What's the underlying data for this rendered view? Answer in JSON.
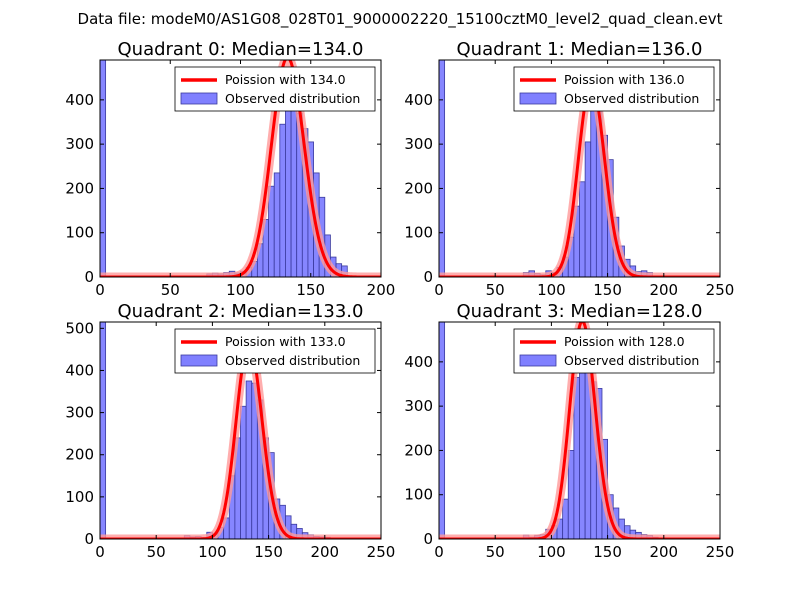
{
  "figure": {
    "suptitle": "Data file: modeM0/AS1G08_028T01_9000002220_15100cztM0_level2_quad_clean.evt"
  },
  "colors": {
    "bar_fill": "#8080ff",
    "bar_edge": "#3a3a9e",
    "line": "#ff0000",
    "line_glow": "#ff9a9a"
  },
  "chart_data": [
    {
      "type": "bar",
      "title": "Quadrant 0: Median=134.0",
      "xlim": [
        0,
        200
      ],
      "ylim": [
        0,
        490
      ],
      "xticks": [
        0,
        50,
        100,
        150,
        200
      ],
      "yticks": [
        0,
        100,
        200,
        300,
        400
      ],
      "bin_width": 4,
      "bins": [
        [
          0,
          490
        ],
        [
          76,
          7
        ],
        [
          80,
          9
        ],
        [
          84,
          7
        ],
        [
          88,
          10
        ],
        [
          92,
          13
        ],
        [
          96,
          9
        ],
        [
          100,
          13
        ],
        [
          104,
          22
        ],
        [
          108,
          35
        ],
        [
          112,
          75
        ],
        [
          116,
          130
        ],
        [
          120,
          205
        ],
        [
          124,
          235
        ],
        [
          128,
          345
        ],
        [
          132,
          440
        ],
        [
          136,
          420
        ],
        [
          140,
          370
        ],
        [
          144,
          335
        ],
        [
          148,
          305
        ],
        [
          152,
          235
        ],
        [
          156,
          180
        ],
        [
          160,
          95
        ],
        [
          164,
          45
        ],
        [
          168,
          30
        ],
        [
          172,
          25
        ]
      ],
      "poisson_mean": 134.0,
      "legend": [
        "Poission with 134.0",
        "Observed distribution"
      ]
    },
    {
      "type": "bar",
      "title": "Quadrant 1: Median=136.0",
      "xlim": [
        0,
        250
      ],
      "ylim": [
        0,
        490
      ],
      "xticks": [
        0,
        50,
        100,
        150,
        200,
        250
      ],
      "yticks": [
        0,
        100,
        200,
        300,
        400
      ],
      "bin_width": 5,
      "bins": [
        [
          0,
          490
        ],
        [
          75,
          10
        ],
        [
          80,
          14
        ],
        [
          85,
          8
        ],
        [
          90,
          5
        ],
        [
          95,
          14
        ],
        [
          100,
          10
        ],
        [
          105,
          22
        ],
        [
          110,
          45
        ],
        [
          115,
          90
        ],
        [
          120,
          160
        ],
        [
          125,
          215
        ],
        [
          130,
          305
        ],
        [
          135,
          400
        ],
        [
          140,
          375
        ],
        [
          145,
          320
        ],
        [
          150,
          265
        ],
        [
          155,
          135
        ],
        [
          160,
          70
        ],
        [
          165,
          40
        ],
        [
          170,
          25
        ],
        [
          175,
          12
        ],
        [
          180,
          14
        ],
        [
          185,
          10
        ]
      ],
      "poisson_mean": 136.0,
      "legend": [
        "Poission with 136.0",
        "Observed distribution"
      ]
    },
    {
      "type": "bar",
      "title": "Quadrant 2: Median=133.0",
      "xlim": [
        0,
        250
      ],
      "ylim": [
        0,
        515
      ],
      "xticks": [
        0,
        50,
        100,
        150,
        200,
        250
      ],
      "yticks": [
        0,
        100,
        200,
        300,
        400,
        500
      ],
      "bin_width": 5,
      "bins": [
        [
          0,
          515
        ],
        [
          75,
          8
        ],
        [
          80,
          5
        ],
        [
          85,
          6
        ],
        [
          90,
          4
        ],
        [
          95,
          16
        ],
        [
          100,
          12
        ],
        [
          105,
          28
        ],
        [
          110,
          50
        ],
        [
          115,
          150
        ],
        [
          120,
          240
        ],
        [
          125,
          315
        ],
        [
          130,
          375
        ],
        [
          135,
          370
        ],
        [
          140,
          330
        ],
        [
          145,
          240
        ],
        [
          150,
          205
        ],
        [
          155,
          95
        ],
        [
          160,
          80
        ],
        [
          165,
          55
        ],
        [
          170,
          35
        ],
        [
          175,
          25
        ],
        [
          180,
          15
        ],
        [
          185,
          10
        ],
        [
          190,
          6
        ],
        [
          195,
          5
        ],
        [
          200,
          4
        ]
      ],
      "poisson_mean": 133.0,
      "legend": [
        "Poission with 133.0",
        "Observed distribution"
      ]
    },
    {
      "type": "bar",
      "title": "Quadrant 3: Median=128.0",
      "xlim": [
        0,
        250
      ],
      "ylim": [
        0,
        490
      ],
      "xticks": [
        0,
        50,
        100,
        150,
        200,
        250
      ],
      "yticks": [
        0,
        100,
        200,
        300,
        400
      ],
      "bin_width": 5,
      "bins": [
        [
          0,
          490
        ],
        [
          75,
          9
        ],
        [
          80,
          4
        ],
        [
          85,
          8
        ],
        [
          90,
          10
        ],
        [
          95,
          22
        ],
        [
          100,
          30
        ],
        [
          105,
          45
        ],
        [
          110,
          90
        ],
        [
          115,
          200
        ],
        [
          120,
          365
        ],
        [
          125,
          375
        ],
        [
          130,
          410
        ],
        [
          135,
          355
        ],
        [
          140,
          340
        ],
        [
          145,
          225
        ],
        [
          150,
          100
        ],
        [
          155,
          70
        ],
        [
          160,
          45
        ],
        [
          165,
          30
        ],
        [
          170,
          20
        ],
        [
          175,
          15
        ],
        [
          180,
          10
        ],
        [
          185,
          8
        ],
        [
          190,
          4
        ]
      ],
      "poisson_mean": 128.0,
      "legend": [
        "Poission with 128.0",
        "Observed distribution"
      ]
    }
  ]
}
